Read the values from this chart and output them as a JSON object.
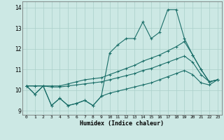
{
  "xlabel": "Humidex (Indice chaleur)",
  "background_color": "#cce8e4",
  "grid_color": "#aacfca",
  "line_color": "#1a6e68",
  "xlim": [
    -0.5,
    23.5
  ],
  "ylim": [
    8.8,
    14.3
  ],
  "yticks": [
    9,
    10,
    11,
    12,
    13,
    14
  ],
  "xticks": [
    0,
    1,
    2,
    3,
    4,
    5,
    6,
    7,
    8,
    9,
    10,
    11,
    12,
    13,
    14,
    15,
    16,
    17,
    18,
    19,
    20,
    21,
    22,
    23
  ],
  "series": {
    "jagged": [
      10.2,
      9.8,
      10.2,
      9.25,
      9.6,
      9.25,
      9.35,
      9.5,
      9.25,
      9.7,
      11.8,
      12.2,
      12.5,
      12.5,
      13.3,
      12.5,
      12.8,
      13.9,
      13.9,
      12.5,
      11.7,
      11.0,
      10.4,
      10.5
    ],
    "upper": [
      10.2,
      10.2,
      10.2,
      10.2,
      10.2,
      10.3,
      10.4,
      10.5,
      10.55,
      10.6,
      10.75,
      10.9,
      11.05,
      11.2,
      11.4,
      11.55,
      11.7,
      11.9,
      12.1,
      12.35,
      11.7,
      11.0,
      10.4,
      10.5
    ],
    "middle": [
      10.2,
      10.2,
      10.2,
      10.15,
      10.15,
      10.2,
      10.25,
      10.3,
      10.35,
      10.4,
      10.5,
      10.6,
      10.7,
      10.8,
      10.95,
      11.05,
      11.2,
      11.35,
      11.5,
      11.65,
      11.35,
      10.75,
      10.4,
      10.5
    ],
    "lower": [
      10.2,
      9.8,
      10.2,
      9.25,
      9.6,
      9.25,
      9.35,
      9.5,
      9.25,
      9.7,
      9.85,
      9.95,
      10.05,
      10.15,
      10.25,
      10.35,
      10.5,
      10.65,
      10.8,
      10.95,
      10.75,
      10.35,
      10.25,
      10.5
    ]
  }
}
